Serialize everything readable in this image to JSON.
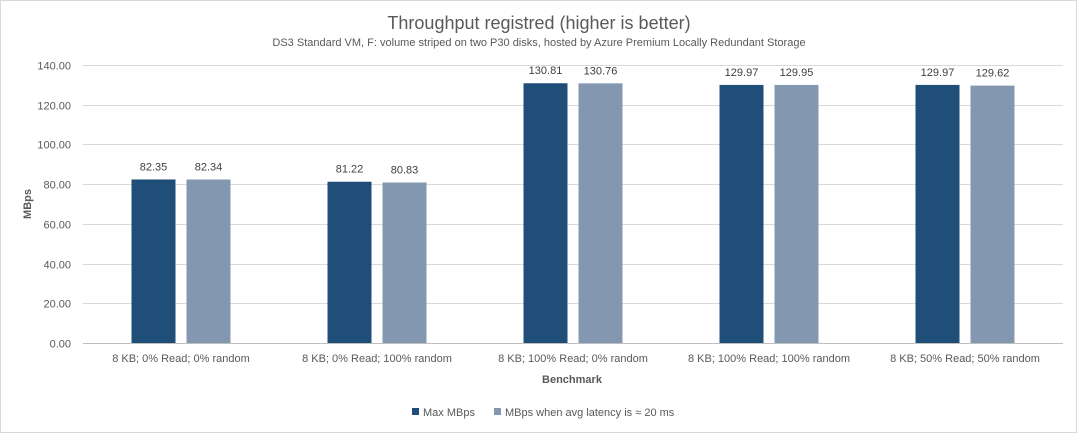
{
  "chart_data": {
    "type": "bar",
    "title": "Throughput registred (higher is better)",
    "subtitle": "DS3 Standard VM, F: volume striped on two P30 disks, hosted by Azure Premium Locally Redundant Storage",
    "xlabel": "Benchmark",
    "ylabel": "MBps",
    "ylim": [
      0,
      140
    ],
    "yticks": [
      0,
      20,
      40,
      60,
      80,
      100,
      120,
      140
    ],
    "ytick_labels": [
      "0.00",
      "20.00",
      "40.00",
      "60.00",
      "80.00",
      "100.00",
      "120.00",
      "140.00"
    ],
    "grid": true,
    "legend_position": "bottom",
    "categories": [
      "8 KB; 0% Read; 0% random",
      "8 KB; 0% Read; 100% random",
      "8 KB; 100% Read; 0% random",
      "8 KB; 100% Read; 100% random",
      "8 KB; 50% Read; 50% random"
    ],
    "series": [
      {
        "name": "Max MBps",
        "color": "#1f4e79",
        "values": [
          82.35,
          81.22,
          130.81,
          129.97,
          129.97
        ],
        "labels": [
          "82.35",
          "81.22",
          "130.81",
          "129.97",
          "129.97"
        ]
      },
      {
        "name": "MBps when avg latency is ≈ 20 ms",
        "color": "#8497b0",
        "values": [
          82.34,
          80.83,
          130.76,
          129.95,
          129.62
        ],
        "labels": [
          "82.34",
          "80.83",
          "130.76",
          "129.95",
          "129.62"
        ]
      }
    ]
  }
}
